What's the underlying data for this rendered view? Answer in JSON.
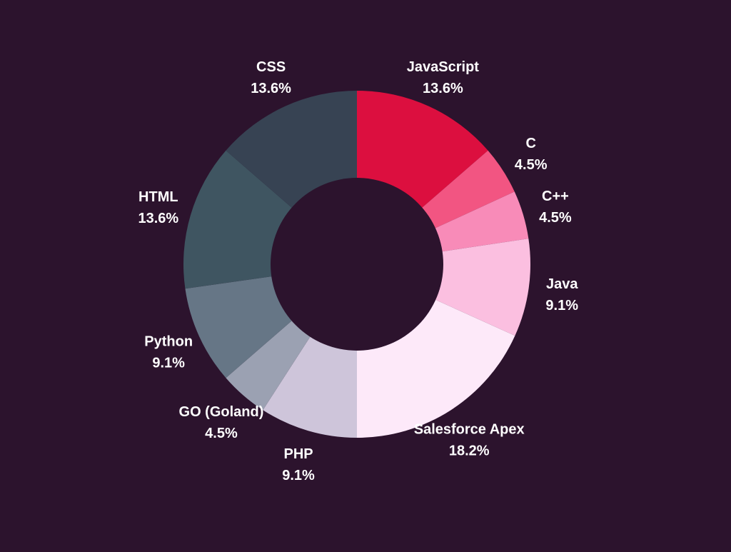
{
  "chart_data": {
    "type": "pie",
    "variant": "donut",
    "legend": "none",
    "slices": [
      {
        "label": "JavaScript",
        "value": 13.6,
        "display": "13.6%",
        "color": "#dc0f3f"
      },
      {
        "label": "C",
        "value": 4.5,
        "display": "4.5%",
        "color": "#f25582"
      },
      {
        "label": "C++",
        "value": 4.5,
        "display": "4.5%",
        "color": "#f88bb8"
      },
      {
        "label": "Java",
        "value": 9.1,
        "display": "9.1%",
        "color": "#fbbfe0"
      },
      {
        "label": "Salesforce Apex",
        "value": 18.2,
        "display": "18.2%",
        "color": "#fde9f9"
      },
      {
        "label": "PHP",
        "value": 9.1,
        "display": "9.1%",
        "color": "#cec5da"
      },
      {
        "label": "GO (Goland)",
        "value": 4.5,
        "display": "4.5%",
        "color": "#9ba1b2"
      },
      {
        "label": "Python",
        "value": 9.1,
        "display": "9.1%",
        "color": "#667686"
      },
      {
        "label": "HTML",
        "value": 13.6,
        "display": "13.6%",
        "color": "#3f5561"
      },
      {
        "label": "CSS",
        "value": 13.6,
        "display": "13.6%",
        "color": "#374353"
      }
    ]
  }
}
